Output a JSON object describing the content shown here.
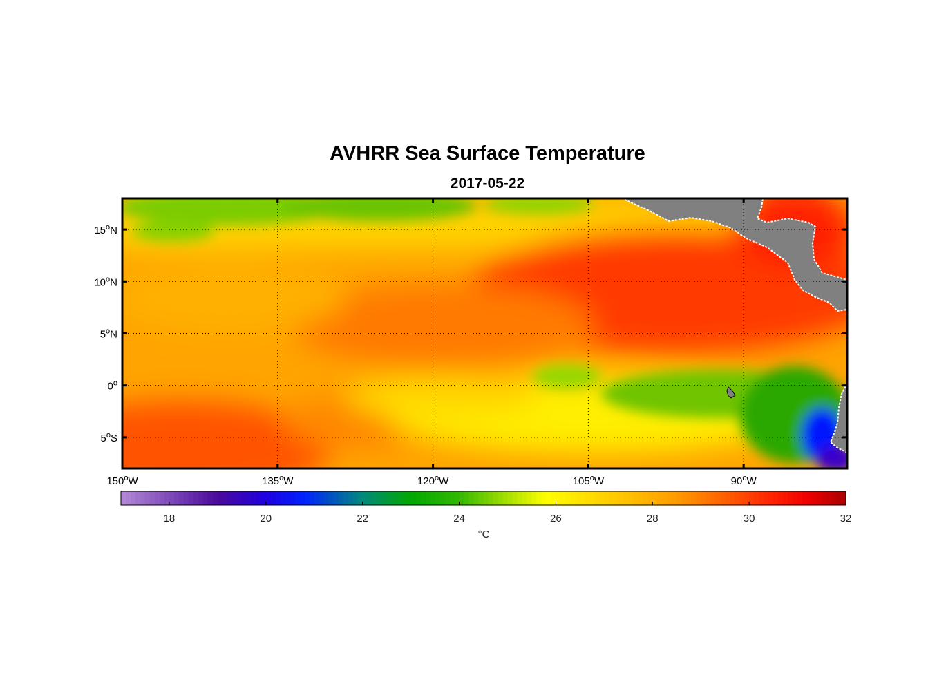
{
  "title": "AVHRR Sea Surface Temperature",
  "date": "2017-05-22",
  "map": {
    "lon_range": [
      -150,
      -80
    ],
    "lat_range": [
      -8,
      18
    ],
    "lon_ticks": [
      {
        "value": -150,
        "num": "150",
        "sup": "o",
        "hemi": "W"
      },
      {
        "value": -135,
        "num": "135",
        "sup": "o",
        "hemi": "W"
      },
      {
        "value": -120,
        "num": "120",
        "sup": "o",
        "hemi": "W"
      },
      {
        "value": -105,
        "num": "105",
        "sup": "o",
        "hemi": "W"
      },
      {
        "value": -90,
        "num": "90",
        "sup": "o",
        "hemi": "W"
      }
    ],
    "lat_ticks": [
      {
        "value": 15,
        "num": "15",
        "sup": "o",
        "hemi": "N"
      },
      {
        "value": 10,
        "num": "10",
        "sup": "o",
        "hemi": "N"
      },
      {
        "value": 5,
        "num": "5",
        "sup": "o",
        "hemi": "N"
      },
      {
        "value": 0,
        "num": "0",
        "sup": "o",
        "hemi": ""
      },
      {
        "value": -5,
        "num": "5",
        "sup": "o",
        "hemi": "S"
      }
    ],
    "land_color": "#808080",
    "coast_color": "#ffffff"
  },
  "colorbar": {
    "min": 17,
    "max": 32,
    "ticks": [
      "18",
      "20",
      "22",
      "24",
      "26",
      "28",
      "30",
      "32"
    ],
    "unit": "°C",
    "stops": [
      [
        17,
        "#b48ad6"
      ],
      [
        19,
        "#4a0a9c"
      ],
      [
        20,
        "#1f00e0"
      ],
      [
        20.8,
        "#0022ff"
      ],
      [
        22,
        "#008a7a"
      ],
      [
        23,
        "#00a800"
      ],
      [
        24,
        "#33b800"
      ],
      [
        25,
        "#a8e000"
      ],
      [
        25.8,
        "#ffff00"
      ],
      [
        26.6,
        "#ffe000"
      ],
      [
        27.5,
        "#ffc000"
      ],
      [
        28.5,
        "#ff9a00"
      ],
      [
        29.5,
        "#ff6000"
      ],
      [
        30.5,
        "#ff2000"
      ],
      [
        31.2,
        "#f00000"
      ],
      [
        32,
        "#a80000"
      ]
    ]
  }
}
